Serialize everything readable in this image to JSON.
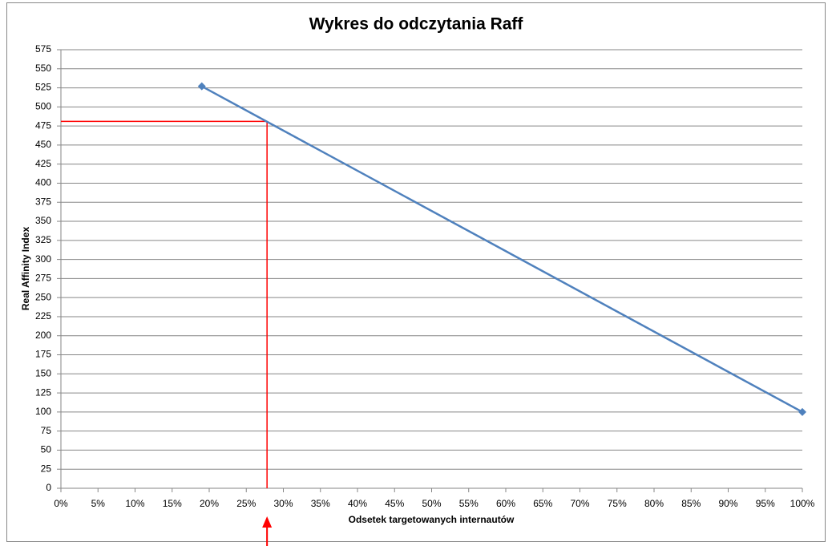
{
  "chart_data": {
    "type": "line",
    "title": "Wykres do odczytania Raff",
    "x_label": "Odsetek targetowanych internautów",
    "y_label": "Real Affinity Index",
    "series": [
      {
        "name": "Real Affinity Index",
        "color": "#4f81bd",
        "x": [
          19,
          100
        ],
        "values": [
          527,
          100
        ]
      }
    ],
    "xlim": [
      0,
      100
    ],
    "xticks": [
      {
        "value": 0,
        "label": "0%"
      },
      {
        "value": 5,
        "label": "5%"
      },
      {
        "value": 10,
        "label": "10%"
      },
      {
        "value": 15,
        "label": "15%"
      },
      {
        "value": 20,
        "label": "20%"
      },
      {
        "value": 25,
        "label": "25%"
      },
      {
        "value": 30,
        "label": "30%"
      },
      {
        "value": 35,
        "label": "35%"
      },
      {
        "value": 40,
        "label": "40%"
      },
      {
        "value": 45,
        "label": "45%"
      },
      {
        "value": 50,
        "label": "50%"
      },
      {
        "value": 55,
        "label": "55%"
      },
      {
        "value": 60,
        "label": "60%"
      },
      {
        "value": 65,
        "label": "65%"
      },
      {
        "value": 70,
        "label": "70%"
      },
      {
        "value": 75,
        "label": "75%"
      },
      {
        "value": 80,
        "label": "80%"
      },
      {
        "value": 85,
        "label": "85%"
      },
      {
        "value": 90,
        "label": "90%"
      },
      {
        "value": 95,
        "label": "95%"
      },
      {
        "value": 100,
        "label": "100%"
      }
    ],
    "ylim": [
      0,
      575
    ],
    "yticks": [
      0,
      25,
      50,
      75,
      100,
      125,
      150,
      175,
      200,
      225,
      250,
      275,
      300,
      325,
      350,
      375,
      400,
      425,
      450,
      475,
      500,
      525,
      550,
      575
    ],
    "grid": true,
    "reference": {
      "x": 27.8,
      "y": 481,
      "color": "#ff0000"
    }
  }
}
